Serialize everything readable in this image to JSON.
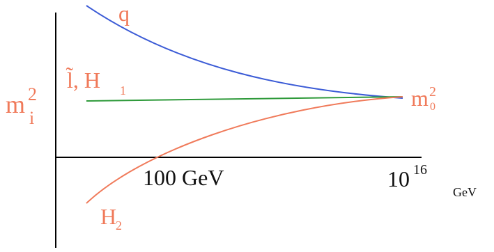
{
  "diagram": {
    "y_axis_label": {
      "base": "m",
      "superscript": "2",
      "subscript": "i"
    },
    "x_tick_labels": {
      "low": "100 GeV",
      "high_base": "10",
      "high_exponent": "16",
      "unit": "GeV"
    },
    "curves": [
      {
        "label": "q",
        "color": "#3b5bd6"
      },
      {
        "label_a": "l̃",
        "label_sep": ", ",
        "label_b": "H",
        "label_b_sub": "1",
        "color": "#2e9a3a"
      },
      {
        "label": "H",
        "label_sub": "2",
        "color": "#f07a5a"
      }
    ],
    "convergence_label": {
      "base": "m",
      "superscript": "2",
      "subscript": "0"
    },
    "colors": {
      "axis": "#000000",
      "text_orange": "#f07a5a",
      "tick_text": "#111111"
    }
  }
}
